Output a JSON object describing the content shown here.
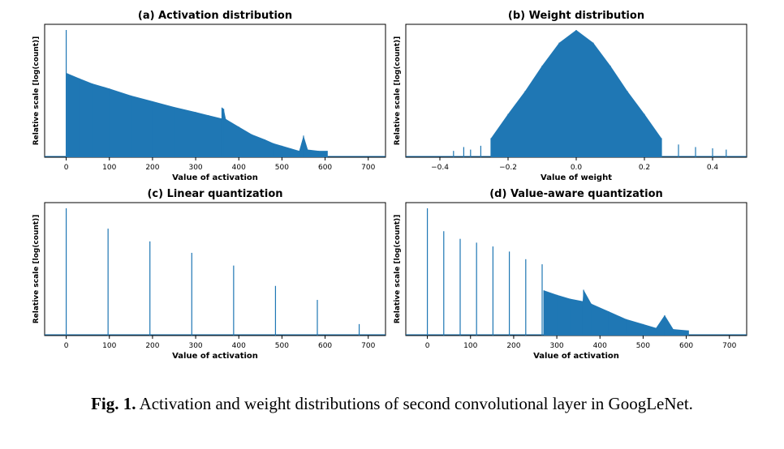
{
  "figure": {
    "caption_label": "Fig. 1.",
    "caption_text": " Activation and weight distributions of second convolutional layer in GoogLeNet."
  },
  "colors": {
    "bar": "#1f77b4",
    "axis": "#000000"
  },
  "chart_data": [
    {
      "id": "a",
      "type": "bar",
      "title": "(a) Activation distribution",
      "xlabel": "Value of activation",
      "ylabel": "Relative scale [log(count)]",
      "xlim": [
        -50,
        740
      ],
      "ylim": [
        0,
        1
      ],
      "yscale": "log",
      "ytick_labels": [],
      "xticks": [
        0,
        100,
        200,
        300,
        400,
        500,
        600,
        700
      ],
      "xtick_labels": [
        "0",
        "100",
        "200",
        "300",
        "400",
        "500",
        "600",
        "700"
      ],
      "distribution": "spike at 0, then log-count decays roughly linearly with sparse outliers to about 610",
      "bars": [
        {
          "x": 0,
          "y": 1.0
        },
        {
          "x": 2,
          "y": 0.66
        },
        {
          "x": 30,
          "y": 0.62
        },
        {
          "x": 60,
          "y": 0.58
        },
        {
          "x": 100,
          "y": 0.54
        },
        {
          "x": 150,
          "y": 0.485
        },
        {
          "x": 200,
          "y": 0.44
        },
        {
          "x": 250,
          "y": 0.395
        },
        {
          "x": 300,
          "y": 0.355
        },
        {
          "x": 330,
          "y": 0.33
        },
        {
          "x": 360,
          "y": 0.305
        },
        {
          "x": 361,
          "y": 0.39
        },
        {
          "x": 365,
          "y": 0.38
        },
        {
          "x": 370,
          "y": 0.3
        },
        {
          "x": 400,
          "y": 0.24
        },
        {
          "x": 430,
          "y": 0.18
        },
        {
          "x": 460,
          "y": 0.14
        },
        {
          "x": 480,
          "y": 0.11
        },
        {
          "x": 500,
          "y": 0.09
        },
        {
          "x": 520,
          "y": 0.07
        },
        {
          "x": 540,
          "y": 0.05
        },
        {
          "x": 550,
          "y": 0.17
        },
        {
          "x": 560,
          "y": 0.06
        },
        {
          "x": 585,
          "y": 0.05
        },
        {
          "x": 605,
          "y": 0.05
        }
      ]
    },
    {
      "id": "b",
      "type": "bar",
      "title": "(b) Weight distribution",
      "xlabel": "Value of weight",
      "ylabel": "Relative scale [log(count)]",
      "xlim": [
        -0.5,
        0.5
      ],
      "ylim": [
        0,
        1
      ],
      "yscale": "log",
      "ytick_labels": [],
      "xticks": [
        -0.4,
        -0.2,
        0.0,
        0.2,
        0.4
      ],
      "xtick_labels": [
        "−0.4",
        "−0.2",
        "0.0",
        "0.2",
        "0.4"
      ],
      "distribution": "bell-shaped, centered near 0.0, sparse outliers in both tails",
      "bars": [
        {
          "x": -0.36,
          "y": 0.05
        },
        {
          "x": -0.33,
          "y": 0.08
        },
        {
          "x": -0.31,
          "y": 0.06
        },
        {
          "x": -0.28,
          "y": 0.09
        },
        {
          "x": -0.25,
          "y": 0.15
        },
        {
          "x": -0.2,
          "y": 0.34
        },
        {
          "x": -0.15,
          "y": 0.52
        },
        {
          "x": -0.1,
          "y": 0.72
        },
        {
          "x": -0.05,
          "y": 0.9
        },
        {
          "x": 0.0,
          "y": 1.0
        },
        {
          "x": 0.05,
          "y": 0.9
        },
        {
          "x": 0.1,
          "y": 0.72
        },
        {
          "x": 0.15,
          "y": 0.52
        },
        {
          "x": 0.2,
          "y": 0.34
        },
        {
          "x": 0.25,
          "y": 0.15
        },
        {
          "x": 0.3,
          "y": 0.1
        },
        {
          "x": 0.35,
          "y": 0.08
        },
        {
          "x": 0.4,
          "y": 0.07
        },
        {
          "x": 0.44,
          "y": 0.06
        }
      ]
    },
    {
      "id": "c",
      "type": "bar",
      "title": "(c) Linear quantization",
      "xlabel": "Value of activation",
      "ylabel": "Relative scale [log(count)]",
      "xlim": [
        -50,
        740
      ],
      "ylim": [
        0,
        1
      ],
      "yscale": "log",
      "ytick_labels": [],
      "xticks": [
        0,
        100,
        200,
        300,
        400,
        500,
        600,
        700
      ],
      "xtick_labels": [
        "0",
        "100",
        "200",
        "300",
        "400",
        "500",
        "600",
        "700"
      ],
      "bars": [
        {
          "x": 0,
          "y": 1.0
        },
        {
          "x": 97,
          "y": 0.84
        },
        {
          "x": 194,
          "y": 0.74
        },
        {
          "x": 291,
          "y": 0.65
        },
        {
          "x": 388,
          "y": 0.55
        },
        {
          "x": 485,
          "y": 0.39
        },
        {
          "x": 582,
          "y": 0.28
        },
        {
          "x": 679,
          "y": 0.09
        }
      ]
    },
    {
      "id": "d",
      "type": "bar",
      "title": "(d) Value-aware quantization",
      "xlabel": "Value of activation",
      "ylabel": "Relative scale [log(count)]",
      "xlim": [
        -50,
        740
      ],
      "ylim": [
        0,
        1
      ],
      "yscale": "log",
      "ytick_labels": [],
      "xticks": [
        0,
        100,
        200,
        300,
        400,
        500,
        600,
        700
      ],
      "xtick_labels": [
        "0",
        "100",
        "200",
        "300",
        "400",
        "500",
        "600",
        "700"
      ],
      "distribution": "discrete levels below about 270, then dense continuous tail decaying to about 610",
      "bars": [
        {
          "x": 0,
          "y": 1.0
        },
        {
          "x": 38,
          "y": 0.82
        },
        {
          "x": 76,
          "y": 0.76
        },
        {
          "x": 114,
          "y": 0.73
        },
        {
          "x": 152,
          "y": 0.7
        },
        {
          "x": 190,
          "y": 0.66
        },
        {
          "x": 228,
          "y": 0.6
        },
        {
          "x": 266,
          "y": 0.56
        },
        {
          "x": 270,
          "y": 0.355
        },
        {
          "x": 300,
          "y": 0.32
        },
        {
          "x": 330,
          "y": 0.29
        },
        {
          "x": 360,
          "y": 0.27
        },
        {
          "x": 362,
          "y": 0.36
        },
        {
          "x": 380,
          "y": 0.25
        },
        {
          "x": 420,
          "y": 0.19
        },
        {
          "x": 460,
          "y": 0.13
        },
        {
          "x": 500,
          "y": 0.09
        },
        {
          "x": 530,
          "y": 0.06
        },
        {
          "x": 550,
          "y": 0.16
        },
        {
          "x": 570,
          "y": 0.05
        },
        {
          "x": 605,
          "y": 0.04
        }
      ]
    }
  ]
}
